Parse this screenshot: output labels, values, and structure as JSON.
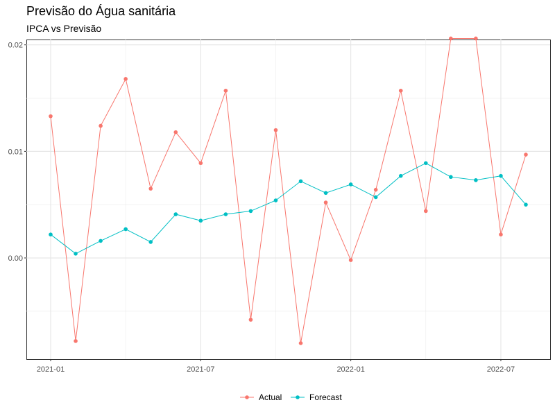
{
  "chart_data": {
    "type": "line",
    "title": "Previsão do Água sanitária",
    "subtitle": "IPCA vs Previsão",
    "xlabel": "",
    "ylabel": "",
    "x": [
      "2021-01",
      "2021-02",
      "2021-03",
      "2021-04",
      "2021-05",
      "2021-06",
      "2021-07",
      "2021-08",
      "2021-09",
      "2021-10",
      "2021-11",
      "2021-12",
      "2022-01",
      "2022-02",
      "2022-03",
      "2022-04",
      "2022-05",
      "2022-06",
      "2022-07",
      "2022-08"
    ],
    "x_ticks": [
      "2021-01",
      "2021-07",
      "2022-01",
      "2022-07"
    ],
    "y_ticks": [
      0.0,
      0.01,
      0.02
    ],
    "y_tick_labels": [
      "0.00",
      "0.01",
      "0.02"
    ],
    "ylim": [
      -0.0095,
      0.0205
    ],
    "grid": true,
    "legend_position": "bottom",
    "series": [
      {
        "name": "Actual",
        "color": "#F8766D",
        "values": [
          0.0133,
          -0.0078,
          0.0124,
          0.0168,
          0.0065,
          0.0118,
          0.0089,
          0.0157,
          -0.0058,
          0.012,
          -0.008,
          0.0052,
          -0.0002,
          0.0064,
          0.0157,
          0.0044,
          0.0206,
          0.0206,
          0.0022,
          0.0097
        ]
      },
      {
        "name": "Forecast",
        "color": "#00BFC4",
        "values": [
          0.0022,
          0.0004,
          0.0016,
          0.0027,
          0.0015,
          0.0041,
          0.0035,
          0.0041,
          0.0044,
          0.0054,
          0.0072,
          0.0061,
          0.0069,
          0.0057,
          0.0077,
          0.0089,
          0.0076,
          0.0073,
          0.0077,
          0.005
        ]
      }
    ]
  }
}
